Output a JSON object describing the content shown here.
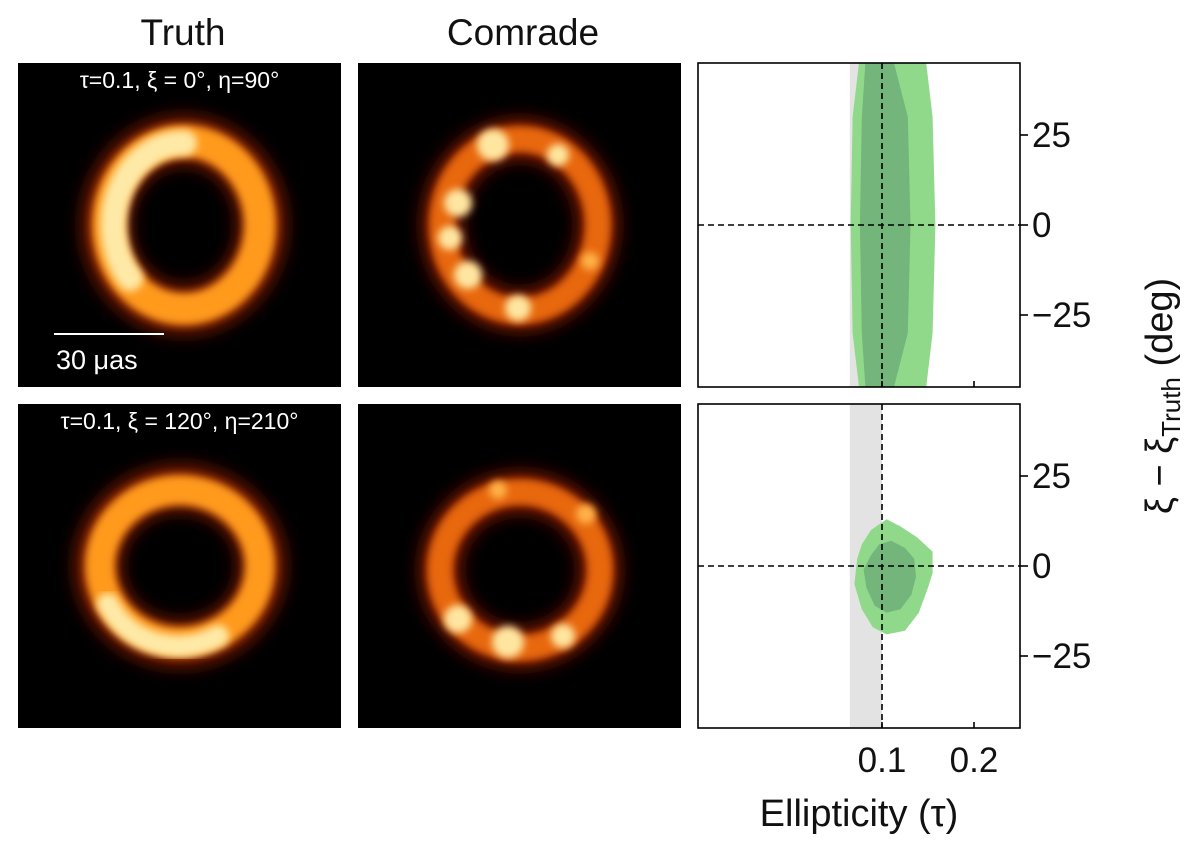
{
  "column_titles": {
    "truth": "Truth",
    "comrade": "Comrade"
  },
  "captions": [
    "τ=0.1, ξ = 0°, η=90°",
    "τ=0.1, ξ = 120°, η=210°"
  ],
  "scale_bar": {
    "label": "30 μas"
  },
  "colors": {
    "ring_hot": "#fff1b8",
    "ring_mid": "#ff8a14",
    "ring_dark": "#7a1600",
    "contour_outer": "#90d98a",
    "contour_inner": "#6fae78",
    "truth_band": "#e3e3e3"
  },
  "chart_data": {
    "type": "contour",
    "xlabel": "Ellipticity (τ)",
    "ylabel": "ξ − ξTruth (deg)",
    "ylabel_main": "ξ − ξ",
    "ylabel_sub": "Truth",
    "ylabel_unit": "(deg)",
    "xlim": [
      -0.1,
      0.25
    ],
    "ylim": [
      -45,
      45
    ],
    "xticks": [
      0.1,
      0.2
    ],
    "xtick_labels": [
      "0.1",
      "0.2"
    ],
    "yticks": [
      25,
      0,
      -25
    ],
    "ytick_labels": [
      "25",
      "0",
      "−25"
    ],
    "truth_tau": 0.1,
    "truth_band": [
      0.065,
      0.1
    ],
    "panels": [
      {
        "name": "top",
        "outer_contour": [
          [
            0.075,
            45
          ],
          [
            0.105,
            45
          ],
          [
            0.148,
            45
          ],
          [
            0.155,
            30
          ],
          [
            0.158,
            0
          ],
          [
            0.155,
            -30
          ],
          [
            0.148,
            -45
          ],
          [
            0.105,
            -45
          ],
          [
            0.075,
            -45
          ],
          [
            0.068,
            -30
          ],
          [
            0.066,
            0
          ],
          [
            0.068,
            30
          ]
        ],
        "inner_contour": [
          [
            0.082,
            45
          ],
          [
            0.113,
            45
          ],
          [
            0.128,
            30
          ],
          [
            0.131,
            0
          ],
          [
            0.128,
            -30
          ],
          [
            0.113,
            -45
          ],
          [
            0.082,
            -45
          ],
          [
            0.078,
            -30
          ],
          [
            0.076,
            0
          ],
          [
            0.078,
            30
          ]
        ]
      },
      {
        "name": "bottom",
        "outer_contour": [
          [
            0.078,
            6
          ],
          [
            0.088,
            10
          ],
          [
            0.105,
            13
          ],
          [
            0.12,
            11
          ],
          [
            0.138,
            8
          ],
          [
            0.155,
            4
          ],
          [
            0.155,
            -2
          ],
          [
            0.15,
            -6
          ],
          [
            0.14,
            -13
          ],
          [
            0.125,
            -18
          ],
          [
            0.105,
            -19
          ],
          [
            0.09,
            -17
          ],
          [
            0.078,
            -12
          ],
          [
            0.07,
            -5
          ],
          [
            0.073,
            2
          ]
        ],
        "inner_contour": [
          [
            0.088,
            3
          ],
          [
            0.097,
            6
          ],
          [
            0.11,
            7
          ],
          [
            0.125,
            5
          ],
          [
            0.135,
            2
          ],
          [
            0.137,
            -3
          ],
          [
            0.132,
            -8
          ],
          [
            0.12,
            -12
          ],
          [
            0.105,
            -13
          ],
          [
            0.092,
            -11
          ],
          [
            0.083,
            -6
          ],
          [
            0.08,
            -1
          ]
        ]
      }
    ]
  }
}
